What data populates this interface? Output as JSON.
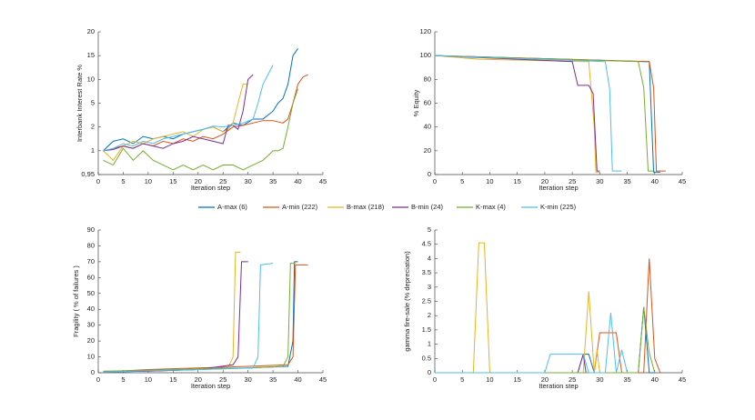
{
  "chart_data": [
    {
      "type": "line",
      "ylabel": "Interbank Interest Rate %",
      "xlabel": "Iteration step",
      "xlim": [
        0,
        45
      ],
      "xticks": [
        0,
        5,
        10,
        15,
        20,
        25,
        30,
        35,
        40,
        45
      ],
      "yscale": "tick-spaced",
      "ylim": [
        0.95,
        20
      ],
      "yticks": [
        {
          "value": 0.95,
          "label": "0,95"
        },
        1,
        2,
        5,
        10,
        15,
        20
      ],
      "series": [
        {
          "name": "A-max (6)",
          "color": "#0072bd",
          "x": [
            1,
            3,
            5,
            7,
            9,
            11,
            13,
            15,
            17,
            19,
            21,
            23,
            25,
            27,
            29,
            31,
            33,
            35,
            36,
            37,
            38,
            39,
            40
          ],
          "values": [
            1,
            1.4,
            1.5,
            1.3,
            1.6,
            1.5,
            1.6,
            1.5,
            1.7,
            1.8,
            1.9,
            2,
            1.8,
            2.5,
            2.2,
            3,
            3,
            4,
            5,
            6,
            9,
            15,
            16.5
          ]
        },
        {
          "name": "A-min (222)",
          "color": "#d95319",
          "x": [
            1,
            3,
            5,
            7,
            9,
            11,
            13,
            15,
            17,
            19,
            21,
            23,
            25,
            27,
            29,
            31,
            33,
            35,
            37,
            38,
            39,
            40,
            41,
            42
          ],
          "values": [
            1,
            1.1,
            1.2,
            1.1,
            1.3,
            1.2,
            1.4,
            1.3,
            1.5,
            1.4,
            1.6,
            1.5,
            1.7,
            2,
            2.2,
            2.5,
            2.8,
            2.8,
            2.5,
            3,
            5,
            9,
            10.5,
            11
          ]
        },
        {
          "name": "B-max (218)",
          "color": "#edb120",
          "x": [
            1,
            3,
            5,
            7,
            9,
            11,
            13,
            15,
            17,
            19,
            21,
            23,
            25,
            26,
            27,
            28,
            29,
            30
          ],
          "values": [
            1,
            0.98,
            1.2,
            1.4,
            1.3,
            1.5,
            1.6,
            1.7,
            1.8,
            1.6,
            1.9,
            2,
            1.8,
            1.9,
            2.5,
            5,
            9,
            9
          ]
        },
        {
          "name": "B-min (24)",
          "color": "#7e2f8e",
          "x": [
            1,
            3,
            5,
            7,
            9,
            11,
            13,
            15,
            17,
            19,
            21,
            23,
            25,
            26,
            27,
            28,
            29,
            30,
            31
          ],
          "values": [
            1,
            1.05,
            1.2,
            1.1,
            1.3,
            1.2,
            1.1,
            1.3,
            1.4,
            1.6,
            1.5,
            1.4,
            1.3,
            2.2,
            2.2,
            1.9,
            4,
            10,
            11
          ]
        },
        {
          "name": "K-max (4)",
          "color": "#77ac30",
          "x": [
            1,
            3,
            5,
            7,
            9,
            11,
            13,
            15,
            17,
            19,
            21,
            23,
            25,
            27,
            29,
            31,
            33,
            35,
            36,
            37,
            38,
            39,
            40
          ],
          "values": [
            0.98,
            0.97,
            1.1,
            0.98,
            1,
            0.98,
            0.97,
            0.96,
            0.97,
            0.96,
            0.97,
            0.96,
            0.97,
            0.97,
            0.96,
            0.97,
            0.98,
            1,
            1,
            1.1,
            2,
            5,
            8
          ]
        },
        {
          "name": "K-min (225)",
          "color": "#4dbeee",
          "x": [
            1,
            3,
            5,
            7,
            9,
            11,
            13,
            15,
            17,
            19,
            21,
            23,
            25,
            27,
            29,
            31,
            32,
            33,
            34,
            35
          ],
          "values": [
            1,
            1.1,
            1.3,
            1.2,
            1.4,
            1.3,
            1.5,
            1.6,
            1.7,
            1.8,
            1.9,
            2.1,
            2,
            2.2,
            2.5,
            3,
            5,
            9,
            11,
            13
          ]
        }
      ]
    },
    {
      "type": "line",
      "ylabel": "% Equity",
      "xlabel": "Iteration step",
      "xlim": [
        0,
        45
      ],
      "xticks": [
        0,
        5,
        10,
        15,
        20,
        25,
        30,
        35,
        40,
        45
      ],
      "ylim": [
        0,
        120
      ],
      "yticks": [
        0,
        20,
        40,
        60,
        80,
        100,
        120
      ],
      "series": [
        {
          "color": "#0072bd",
          "x": [
            0,
            38,
            39,
            39.8,
            41
          ],
          "values": [
            100,
            95,
            95,
            2,
            2
          ]
        },
        {
          "color": "#d95319",
          "x": [
            0,
            39,
            39.8,
            40.3,
            42
          ],
          "values": [
            100,
            95,
            73,
            3,
            3
          ]
        },
        {
          "color": "#edb120",
          "x": [
            0,
            8,
            27,
            28,
            29,
            29.3,
            30
          ],
          "values": [
            100,
            97,
            95,
            95,
            40,
            2,
            2
          ]
        },
        {
          "color": "#7e2f8e",
          "x": [
            0,
            25,
            26,
            28,
            28.8,
            29.5,
            30
          ],
          "values": [
            100,
            95,
            75,
            75,
            68,
            3,
            3
          ]
        },
        {
          "color": "#77ac30",
          "x": [
            0,
            37,
            38,
            38.8,
            40
          ],
          "values": [
            100,
            95,
            73,
            3,
            3
          ]
        },
        {
          "color": "#4dbeee",
          "x": [
            0,
            31,
            31.8,
            32.3,
            34
          ],
          "values": [
            100,
            95,
            72,
            3,
            3
          ]
        }
      ]
    },
    {
      "type": "line",
      "ylabel": "Fragility ( % of failures )",
      "xlabel": "Iteration step",
      "xlim": [
        0,
        45
      ],
      "xticks": [
        0,
        5,
        10,
        15,
        20,
        25,
        30,
        35,
        40,
        45
      ],
      "ylim": [
        0,
        90
      ],
      "yticks": [
        0,
        10,
        20,
        30,
        40,
        50,
        60,
        70,
        80,
        90
      ],
      "series": [
        {
          "color": "#0072bd",
          "x": [
            1,
            10,
            20,
            30,
            38,
            39,
            39.3,
            40
          ],
          "values": [
            0.5,
            1,
            2,
            3,
            4,
            20,
            70,
            70
          ]
        },
        {
          "color": "#d95319",
          "x": [
            1,
            10,
            20,
            30,
            38,
            39,
            39.5,
            42
          ],
          "values": [
            0.5,
            2,
            3,
            4,
            5,
            10,
            68,
            68
          ]
        },
        {
          "color": "#edb120",
          "x": [
            1,
            10,
            20,
            26,
            27,
            27.5,
            28.5
          ],
          "values": [
            0.5,
            1.5,
            2,
            3,
            10,
            76,
            76
          ]
        },
        {
          "color": "#7e2f8e",
          "x": [
            1,
            10,
            20,
            27,
            28,
            28.7,
            30
          ],
          "values": [
            0.5,
            1,
            2,
            5,
            10,
            70,
            70
          ]
        },
        {
          "color": "#77ac30",
          "x": [
            1,
            10,
            20,
            30,
            37,
            38,
            38.5,
            39.5
          ],
          "values": [
            1,
            1.5,
            2.5,
            3,
            4,
            10,
            69,
            69
          ]
        },
        {
          "color": "#4dbeee",
          "x": [
            1,
            20,
            31,
            32,
            32.5,
            35
          ],
          "values": [
            0.5,
            2,
            3,
            10,
            68,
            69
          ]
        }
      ]
    },
    {
      "type": "line",
      "ylabel": "gamma fire-sale (% depreciation)",
      "xlabel": "Iteration step",
      "xlim": [
        0,
        45
      ],
      "xticks": [
        0,
        5,
        10,
        15,
        20,
        25,
        30,
        35,
        40,
        45
      ],
      "ylim": [
        0,
        5
      ],
      "yticks": [
        0,
        0.5,
        1,
        1.5,
        2,
        2.5,
        3,
        3.5,
        4,
        4.5,
        5
      ],
      "series": [
        {
          "color": "#0072bd",
          "x": [
            0,
            26,
            27,
            28,
            29,
            37,
            38,
            39,
            40
          ],
          "values": [
            0,
            0,
            0.65,
            0.65,
            0,
            0,
            2.3,
            0,
            0
          ]
        },
        {
          "color": "#d95319",
          "x": [
            0,
            29,
            30,
            33,
            34,
            38,
            39,
            40,
            41
          ],
          "values": [
            0,
            0,
            1.4,
            1.4,
            0,
            0,
            4,
            0.5,
            0
          ]
        },
        {
          "color": "#edb120",
          "x": [
            0,
            7,
            8,
            9,
            10,
            27,
            28,
            29,
            29.5,
            30
          ],
          "values": [
            0,
            0,
            4.55,
            4.55,
            0,
            0,
            2.85,
            0,
            0.8,
            0
          ]
        },
        {
          "color": "#7e2f8e",
          "x": [
            0,
            26,
            27,
            27.5,
            30
          ],
          "values": [
            0,
            0,
            0.65,
            0,
            0
          ]
        },
        {
          "color": "#77ac30",
          "x": [
            0,
            37,
            38,
            39,
            40
          ],
          "values": [
            0,
            0,
            2.3,
            0.7,
            0
          ]
        },
        {
          "color": "#4dbeee",
          "x": [
            0,
            20,
            21,
            27,
            28,
            31,
            32,
            33,
            34,
            35
          ],
          "values": [
            0,
            0,
            0.65,
            0.65,
            0,
            0,
            2.1,
            0,
            0.8,
            0
          ]
        }
      ]
    }
  ]
}
